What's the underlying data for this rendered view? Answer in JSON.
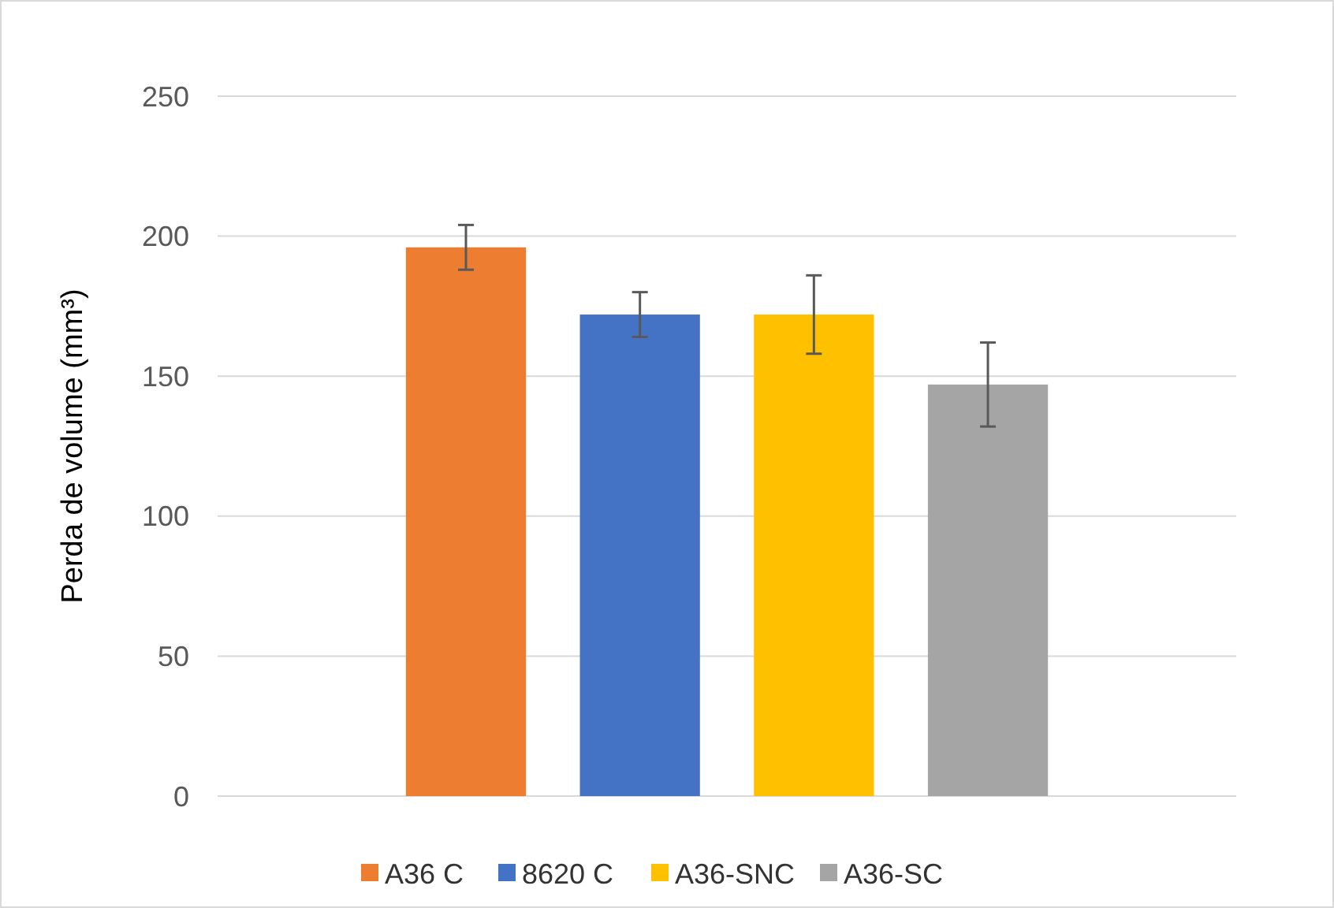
{
  "chart_data": {
    "type": "bar",
    "ylabel": "Perda de volume (mm³)",
    "categories": [
      null
    ],
    "series": [
      {
        "name": "A36 C",
        "color": "#ed7d31",
        "values": [
          196
        ],
        "errors": [
          8
        ]
      },
      {
        "name": "8620 C",
        "color": "#4472c4",
        "values": [
          172
        ],
        "errors": [
          8
        ]
      },
      {
        "name": "A36-SNC",
        "color": "#ffc000",
        "values": [
          172
        ],
        "errors": [
          14
        ]
      },
      {
        "name": "A36-SC",
        "color": "#a5a5a5",
        "values": [
          147
        ],
        "errors": [
          15
        ]
      }
    ],
    "ylim": [
      0,
      250
    ],
    "yticks": [
      0,
      50,
      100,
      150,
      200,
      250
    ],
    "grid": "y",
    "legend": "bottom",
    "tick_labels": "y"
  }
}
